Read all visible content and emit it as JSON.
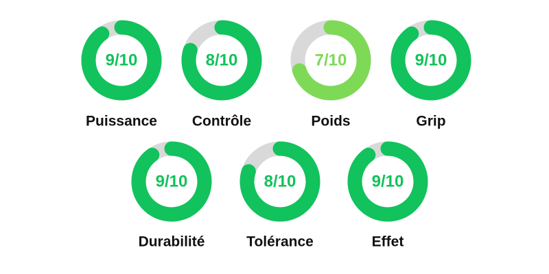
{
  "max": 10,
  "track_color": "#d9d9d9",
  "rows": [
    [
      {
        "name": "Puissance",
        "label": "9/10",
        "value": 9,
        "color": "#12c25c"
      },
      {
        "name": "Contrôle",
        "label": "8/10",
        "value": 8,
        "color": "#12c25c"
      },
      {
        "name": "Poids",
        "label": "7/10",
        "value": 7,
        "color": "#7ed957"
      },
      {
        "name": "Grip",
        "label": "9/10",
        "value": 9,
        "color": "#12c25c"
      }
    ],
    [
      {
        "name": "Durabilité",
        "label": "9/10",
        "value": 9,
        "color": "#12c25c"
      },
      {
        "name": "Tolérance",
        "label": "8/10",
        "value": 8,
        "color": "#12c25c"
      },
      {
        "name": "Effet",
        "label": "9/10",
        "value": 9,
        "color": "#12c25c"
      }
    ]
  ]
}
